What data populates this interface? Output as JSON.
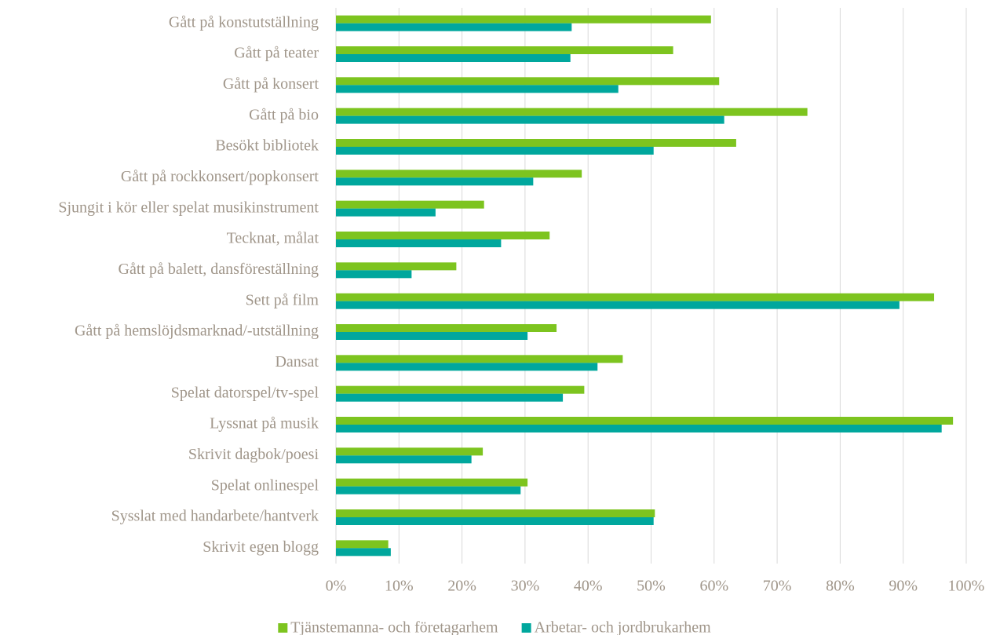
{
  "chart_data": {
    "type": "hbar",
    "categories": [
      "Gått på konstutställning",
      "Gått på teater",
      "Gått på konsert",
      "Gått på bio",
      "Besökt bibliotek",
      "Gått på rockkonsert/popkonsert",
      "Sjungit i kör eller spelat musikinstrument",
      "Tecknat, målat",
      "Gått på balett, dansföreställning",
      "Sett på film",
      "Gått på hemslöjdsmarknad/-utställning",
      "Dansat",
      "Spelat datorspel/tv-spel",
      "Lyssnat på musik",
      "Skrivit dagbok/poesi",
      "Spelat onlinespel",
      "Sysslat med handarbete/hantverk",
      "Skrivit egen blogg"
    ],
    "series": [
      {
        "name": "Tjänstemanna- och företagarhem",
        "color": "#7dc41f",
        "values": [
          59.5,
          53.5,
          60.8,
          74.8,
          63.5,
          39.0,
          23.5,
          33.9,
          19.1,
          94.9,
          35.0,
          45.5,
          39.4,
          97.9,
          23.3,
          30.4,
          50.6,
          8.3
        ]
      },
      {
        "name": "Arbetar- och jordbrukarhem",
        "color": "#00a79d",
        "values": [
          37.4,
          37.2,
          44.8,
          61.6,
          50.4,
          31.3,
          15.8,
          26.2,
          12.0,
          89.4,
          30.4,
          41.5,
          36.0,
          96.1,
          21.5,
          29.3,
          50.4,
          8.7
        ]
      }
    ],
    "xlim": [
      0,
      100
    ],
    "xticks": [
      {
        "value": 0,
        "label": "0%"
      },
      {
        "value": 10,
        "label": "10%"
      },
      {
        "value": 20,
        "label": "20%"
      },
      {
        "value": 30,
        "label": "30%"
      },
      {
        "value": 40,
        "label": "40%"
      },
      {
        "value": 50,
        "label": "50%"
      },
      {
        "value": 60,
        "label": "60%"
      },
      {
        "value": 70,
        "label": "70%"
      },
      {
        "value": 80,
        "label": "80%"
      },
      {
        "value": 90,
        "label": "90%"
      },
      {
        "value": 100,
        "label": "100%"
      }
    ],
    "grid": true,
    "legend": "bottom"
  }
}
